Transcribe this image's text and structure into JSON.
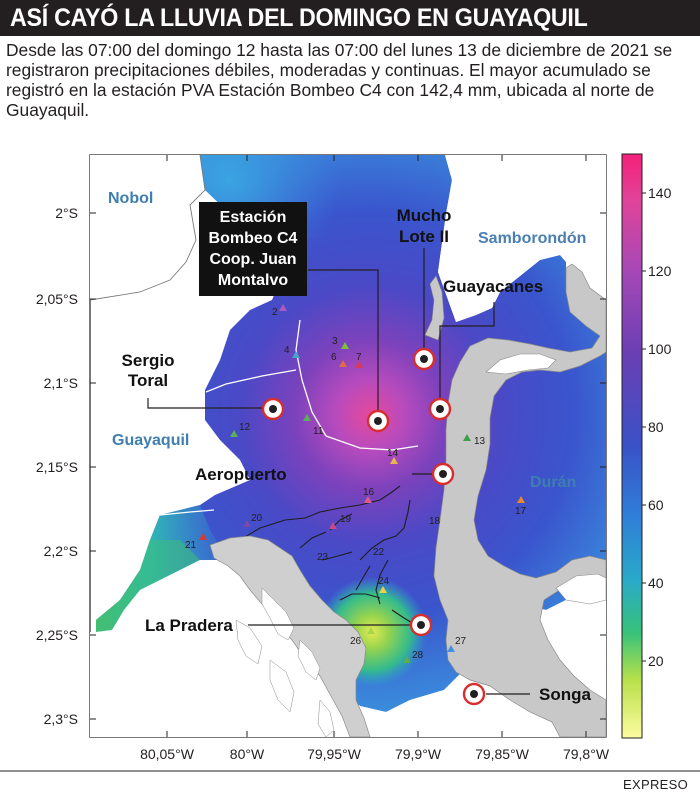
{
  "title": "ASÍ CAYÓ LA LLUVIA DEL DOMINGO EN GUAYAQUIL",
  "intro": "Desde las 07:00 del domingo 12 hasta las 07:00 del lunes 13 de diciembre de 2021 se registraron precipitaciones débiles, moderadas y continuas. El mayor acumulado se registró en la estación PVA Estación Bombeo C4 con 142,4 mm, ubicada al norte de Guayaquil.",
  "credit": "EXPRESO",
  "map": {
    "lat_labels": [
      "2°S",
      "2,05°S",
      "2,1°S",
      "2,15°S",
      "2,2°S",
      "2,25°S",
      "2,3°S"
    ],
    "lon_labels": [
      "80,05°W",
      "80°W",
      "79,95°W",
      "79,9°W",
      "79,85°W",
      "79,8°W"
    ],
    "places": {
      "nobol": "Nobol",
      "samborondon": "Samborondón",
      "guayaquil": "Guayaquil",
      "duran": "Durán"
    },
    "stations": {
      "bombeo_c4": [
        "Estación",
        "Bombeo C4",
        "Coop. Juan",
        "Montalvo"
      ],
      "mucho_lote": [
        "Mucho",
        "Lote II"
      ],
      "guayacanes": "Guayacanes",
      "sergio_toral": [
        "Sergio",
        "Toral"
      ],
      "aeropuerto": "Aeropuerto",
      "la_pradera": "La Pradera",
      "songa": "Songa"
    },
    "station_numbers": [
      "2",
      "3",
      "4",
      "6",
      "7",
      "11",
      "12",
      "13",
      "14",
      "16",
      "17",
      "18",
      "19",
      "20",
      "21",
      "22",
      "23",
      "24",
      "26",
      "27",
      "28"
    ],
    "colorbar": {
      "ticks": [
        "20",
        "40",
        "60",
        "80",
        "100",
        "120",
        "140"
      ],
      "min": 0,
      "max": 150,
      "colors": [
        "#fefba0",
        "#b7e04a",
        "#38c27a",
        "#2aa9c8",
        "#2f7fd8",
        "#3a52c6",
        "#6b3fb3",
        "#a648b6",
        "#e0449a",
        "#f5207a"
      ]
    }
  }
}
